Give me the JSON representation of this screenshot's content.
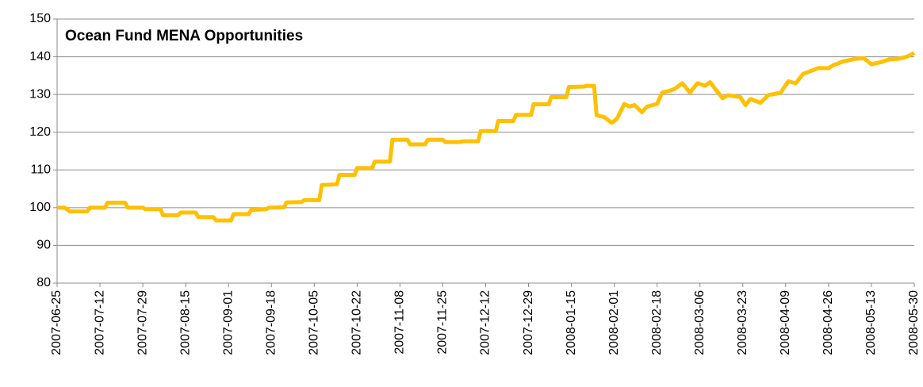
{
  "chart_data": {
    "type": "line",
    "title": "Ocean Fund MENA Opportunities",
    "x": [
      "2007-06-25",
      "2007-06-28",
      "2007-06-30",
      "2007-07-07",
      "2007-07-08",
      "2007-07-14",
      "2007-07-15",
      "2007-07-22",
      "2007-07-23",
      "2007-07-29",
      "2007-07-30",
      "2007-08-05",
      "2007-08-06",
      "2007-08-12",
      "2007-08-13",
      "2007-08-19",
      "2007-08-20",
      "2007-08-26",
      "2007-08-27",
      "2007-09-02",
      "2007-09-03",
      "2007-09-09",
      "2007-09-10",
      "2007-09-16",
      "2007-09-17",
      "2007-09-23",
      "2007-09-24",
      "2007-09-30",
      "2007-10-01",
      "2007-10-07",
      "2007-10-08",
      "2007-10-14",
      "2007-10-15",
      "2007-10-21",
      "2007-10-22",
      "2007-10-28",
      "2007-10-29",
      "2007-11-04",
      "2007-11-05",
      "2007-11-11",
      "2007-11-12",
      "2007-11-18",
      "2007-11-19",
      "2007-11-25",
      "2007-11-26",
      "2007-12-02",
      "2007-12-03",
      "2007-12-09",
      "2007-12-10",
      "2007-12-16",
      "2007-12-17",
      "2007-12-23",
      "2007-12-24",
      "2007-12-30",
      "2007-12-31",
      "2008-01-06",
      "2008-01-07",
      "2008-01-13",
      "2008-01-14",
      "2008-01-20",
      "2008-01-21",
      "2008-01-24",
      "2008-01-25",
      "2008-01-28",
      "2008-01-31",
      "2008-02-02",
      "2008-02-05",
      "2008-02-07",
      "2008-02-09",
      "2008-02-12",
      "2008-02-14",
      "2008-02-18",
      "2008-02-20",
      "2008-02-23",
      "2008-02-25",
      "2008-02-28",
      "2008-03-02",
      "2008-03-05",
      "2008-03-08",
      "2008-03-10",
      "2008-03-12",
      "2008-03-15",
      "2008-03-17",
      "2008-03-22",
      "2008-03-24",
      "2008-03-26",
      "2008-03-30",
      "2008-04-02",
      "2008-04-07",
      "2008-04-10",
      "2008-04-13",
      "2008-04-16",
      "2008-04-20",
      "2008-04-22",
      "2008-04-26",
      "2008-04-28",
      "2008-05-02",
      "2008-05-07",
      "2008-05-10",
      "2008-05-13",
      "2008-05-17",
      "2008-05-20",
      "2008-05-24",
      "2008-05-27",
      "2008-05-30"
    ],
    "series": [
      {
        "name": "Ocean Fund MENA Opportunities",
        "color": "#ffc000",
        "values": [
          100,
          100,
          99,
          99,
          100,
          100,
          101.3,
          101.3,
          100,
          100,
          99.6,
          99.6,
          98,
          98,
          98.7,
          98.7,
          97.5,
          97.5,
          96.6,
          96.6,
          98.3,
          98.3,
          99.4,
          99.6,
          100,
          100.1,
          101.4,
          101.5,
          102,
          102,
          106,
          106.2,
          108.7,
          108.7,
          110.5,
          110.5,
          112.2,
          112.2,
          118,
          118,
          116.8,
          116.8,
          118,
          118,
          117.4,
          117.4,
          117.6,
          117.6,
          120.3,
          120.3,
          123,
          123,
          124.6,
          124.6,
          127.4,
          127.4,
          129.3,
          129.3,
          132,
          132.1,
          132.3,
          132.3,
          124.5,
          124,
          122.5,
          123.5,
          127.5,
          126.8,
          127.2,
          125.3,
          126.8,
          127.5,
          130.5,
          131,
          131.5,
          133,
          130.5,
          133,
          132.3,
          133.3,
          131.5,
          129,
          129.8,
          129.3,
          127.2,
          128.8,
          127.8,
          129.8,
          130.5,
          133.5,
          133,
          135.5,
          136.5,
          137,
          137,
          137.8,
          138.8,
          139.5,
          139.6,
          138,
          138.6,
          139.3,
          139.5,
          140,
          141
        ]
      }
    ],
    "xlim": [
      "2007-06-25",
      "2008-05-30"
    ],
    "xticks": [
      "2007-06-25",
      "2007-07-12",
      "2007-07-29",
      "2007-08-15",
      "2007-09-01",
      "2007-09-18",
      "2007-10-05",
      "2007-10-22",
      "2007-11-08",
      "2007-11-25",
      "2007-12-12",
      "2007-12-29",
      "2008-01-15",
      "2008-02-01",
      "2008-02-18",
      "2008-03-06",
      "2008-03-23",
      "2008-04-09",
      "2008-04-26",
      "2008-05-13",
      "2008-05-30"
    ],
    "ylim": [
      80,
      150
    ],
    "yticks": [
      80,
      90,
      100,
      110,
      120,
      130,
      140,
      150
    ],
    "grid": true
  }
}
